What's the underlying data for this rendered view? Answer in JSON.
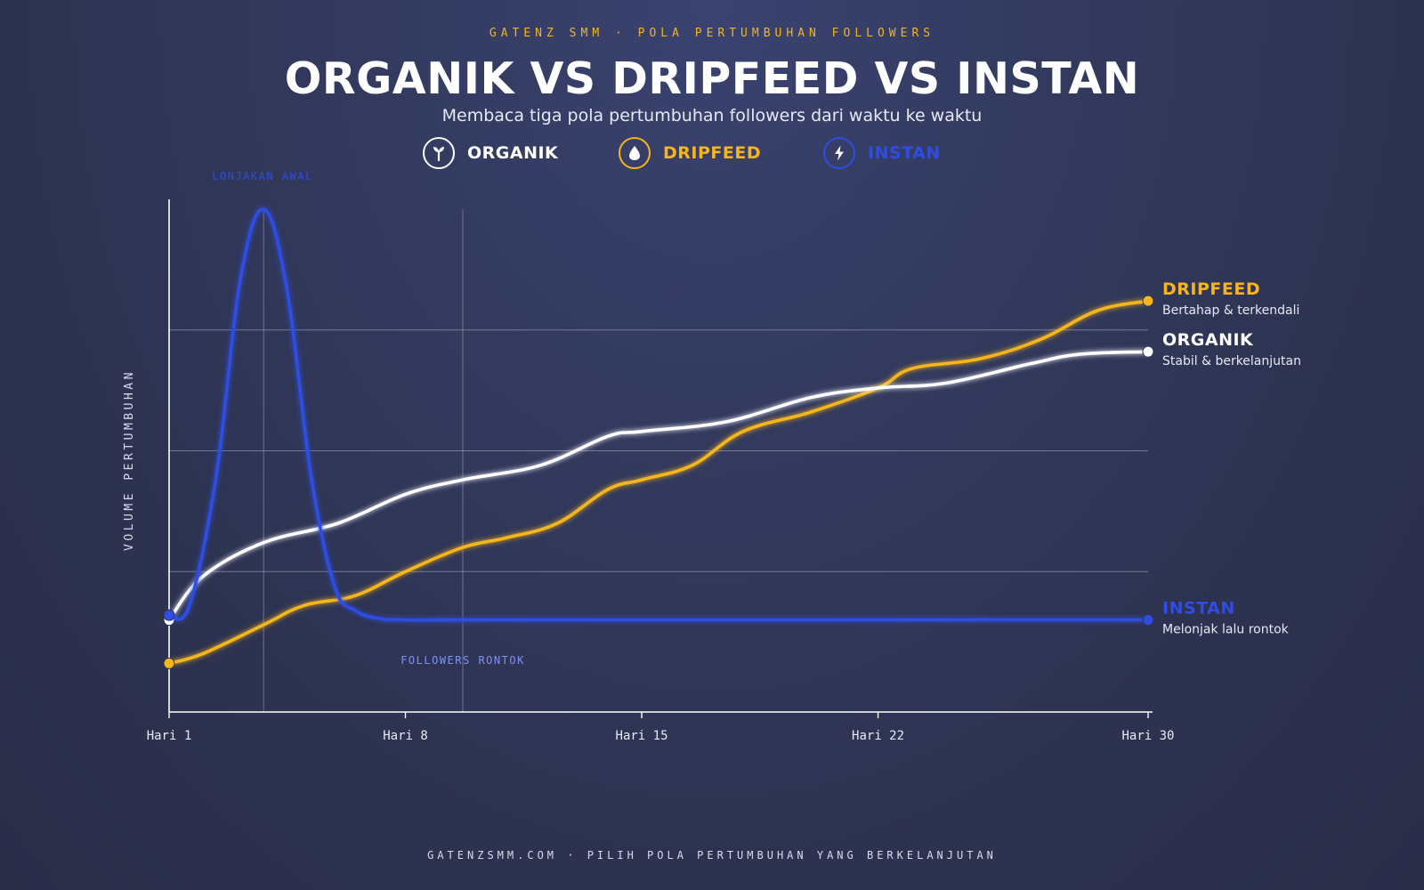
{
  "header": {
    "eyebrow": "GATENZ SMM · POLA PERTUMBUHAN FOLLOWERS",
    "title": "ORGANIK VS DRIPFEED VS INSTAN",
    "subtitle": "Membaca tiga pola pertumbuhan followers dari waktu ke waktu"
  },
  "legend": [
    {
      "label": "ORGANIK",
      "icon": "sprout-icon",
      "color": "#ffffff"
    },
    {
      "label": "DRIPFEED",
      "icon": "droplet-icon",
      "color": "#f5b51d"
    },
    {
      "label": "INSTAN",
      "icon": "lightning-icon",
      "color": "#2f4de3"
    }
  ],
  "footer": "GATENZSMM.COM · PILIH POLA PERTUMBUHAN YANG BERKELANJUTAN",
  "chart_data": {
    "type": "line",
    "title": "ORGANIK VS DRIPFEED VS INSTAN",
    "ylabel": "VOLUME PERTUMBUHAN",
    "xlabel": "",
    "xlim": [
      1,
      30
    ],
    "ylim": [
      0,
      100
    ],
    "xticks": [
      1,
      8,
      15,
      22,
      30
    ],
    "xtick_labels": [
      "Hari 1",
      "Hari 8",
      "Hari 15",
      "Hari 22",
      "Hari 30"
    ],
    "yaxis_values_shown": false,
    "grid": "horizontal",
    "gridlines_y": [
      25,
      50,
      75
    ],
    "series": [
      {
        "name": "ORGANIK",
        "color": "#ffffff",
        "end_label": "ORGANIK",
        "end_note": "Stabil & berkelanjutan",
        "x": [
          1,
          2,
          3.8,
          6,
          8,
          9.7,
          12,
          14,
          15,
          17.5,
          20,
          22,
          24,
          26.5,
          28,
          30
        ],
        "y": [
          15,
          24,
          31,
          35,
          41,
          44,
          47,
          53,
          54,
          56,
          61,
          63,
          64,
          68,
          70,
          70.5
        ]
      },
      {
        "name": "DRIPFEED",
        "color": "#f5b51d",
        "end_label": "DRIPFEED",
        "end_note": "Bertahap & terkendali",
        "x": [
          1,
          2,
          3.8,
          5,
          6.5,
          8,
          9.7,
          11,
          12.5,
          14,
          15,
          16.5,
          18,
          20,
          22,
          23,
          25,
          26.8,
          28.5,
          30
        ],
        "y": [
          6,
          8,
          14,
          18,
          20,
          25,
          30,
          32,
          35,
          42,
          44,
          47,
          54,
          58,
          63,
          67,
          69,
          73,
          79,
          81
        ]
      },
      {
        "name": "INSTAN",
        "color": "#2f4de3",
        "end_label": "INSTAN",
        "end_note": "Melonjak lalu rontok",
        "x": [
          1,
          1.6,
          2.4,
          3.1,
          3.8,
          4.5,
          5.2,
          5.9,
          6.5,
          7.2,
          8,
          10,
          15,
          20,
          25,
          30
        ],
        "y": [
          16,
          18,
          45,
          85,
          100,
          83,
          45,
          22,
          17,
          15.3,
          15,
          15,
          15,
          15,
          15,
          15
        ]
      }
    ],
    "annotations": [
      {
        "text": "LONJAKAN AWAL",
        "x": 3.8,
        "y": 100,
        "color": "#2f4de3"
      },
      {
        "text": "FOLLOWERS RONTOK",
        "x": 9.7,
        "y": 15,
        "color": "#7f93f3"
      }
    ],
    "reference_lines_x": [
      3.8,
      9.7
    ]
  }
}
